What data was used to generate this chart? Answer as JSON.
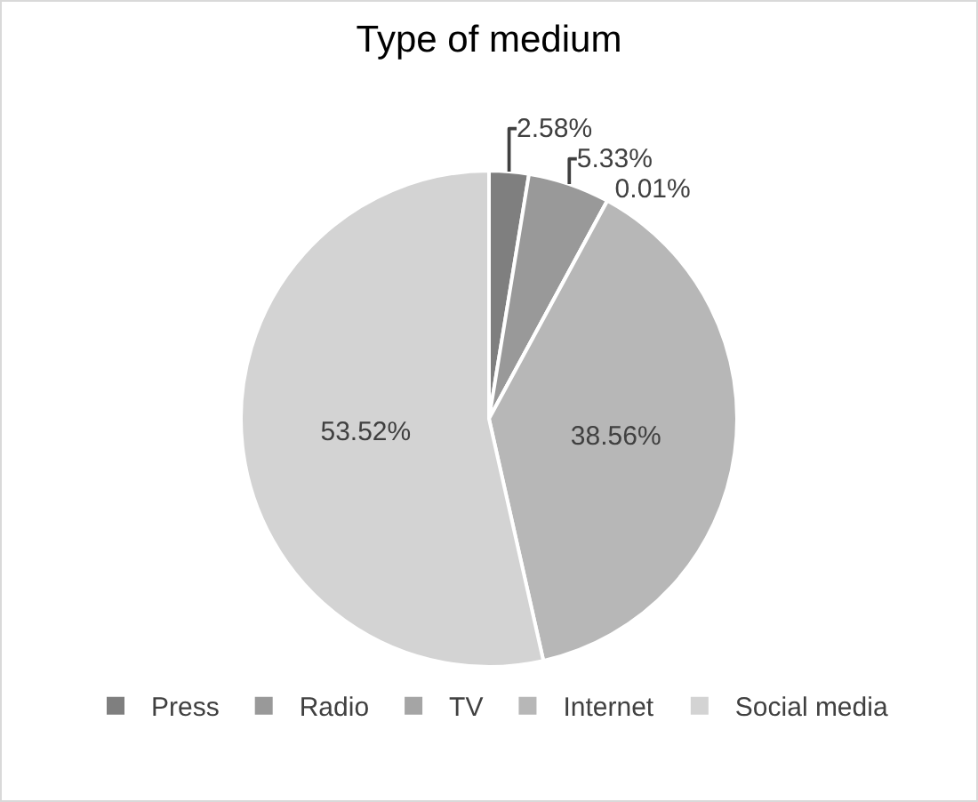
{
  "chart_data": {
    "type": "pie",
    "title": "Type of medium",
    "categories": [
      "Press",
      "Radio",
      "TV",
      "Internet",
      "Social media"
    ],
    "values": [
      2.58,
      5.33,
      0.01,
      38.56,
      53.52
    ],
    "value_labels": [
      "2.58%",
      "5.33%",
      "0.01%",
      "38.56%",
      "53.52%"
    ],
    "colors": [
      "#7f7f7f",
      "#999999",
      "#a5a5a5",
      "#b7b7b7",
      "#d3d3d3"
    ],
    "legend": "bottom"
  }
}
